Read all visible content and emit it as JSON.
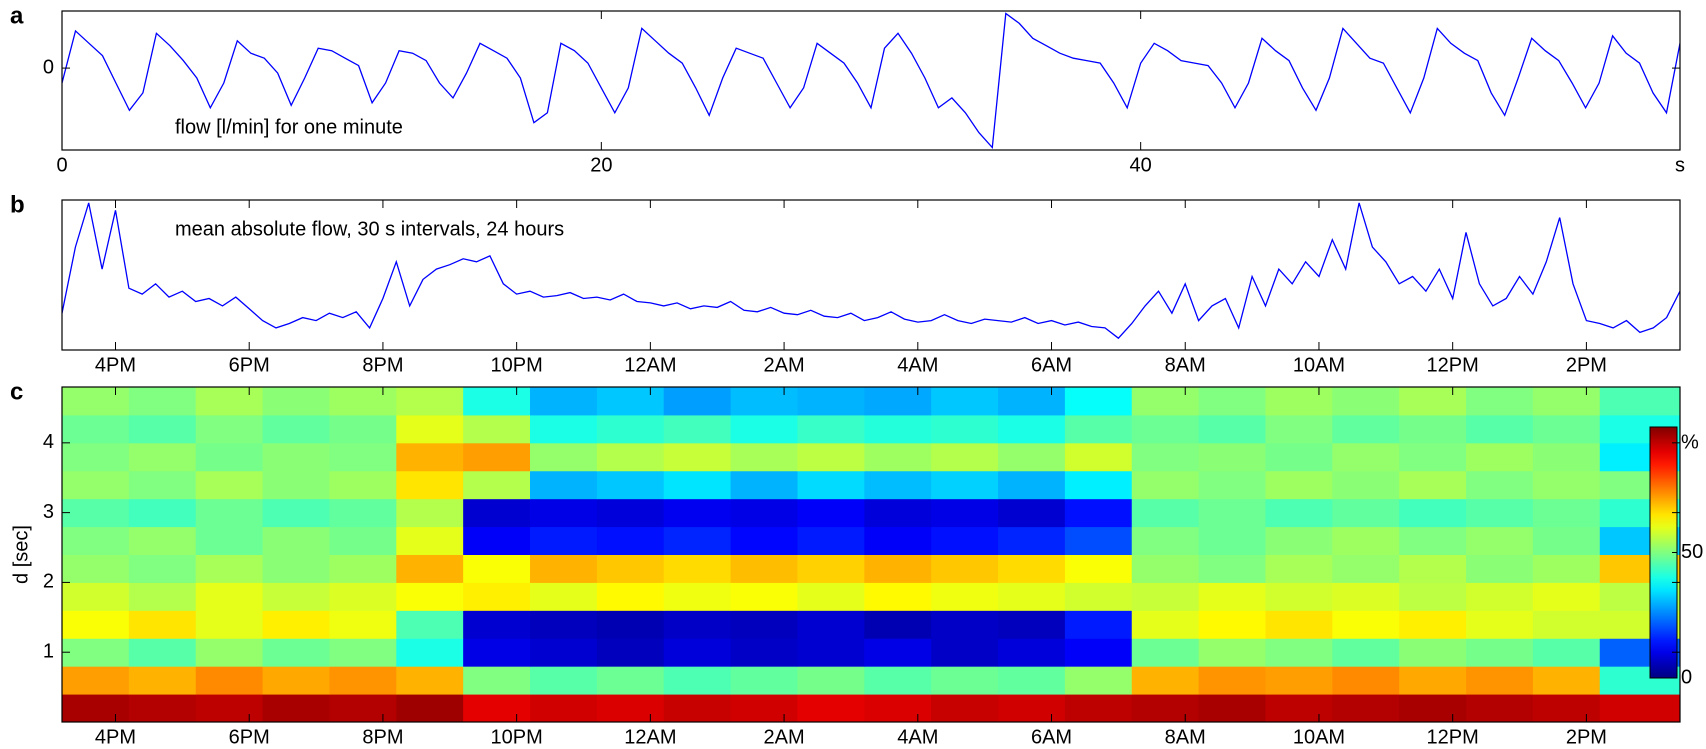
{
  "chart_data": [
    {
      "type": "line",
      "panel_label": "a",
      "annotation": "flow [l/min] for one minute",
      "color": "#0000ff",
      "x": [
        0,
        0.5,
        1,
        1.5,
        2,
        2.5,
        3,
        3.5,
        4,
        4.5,
        5,
        5.5,
        6,
        6.5,
        7,
        7.5,
        8,
        8.5,
        9,
        9.5,
        10,
        10.5,
        11,
        11.5,
        12,
        12.5,
        13,
        13.5,
        14,
        14.5,
        15,
        15.5,
        16,
        16.5,
        17,
        17.5,
        18,
        18.5,
        19,
        19.5,
        20,
        20.5,
        21,
        21.5,
        22,
        22.5,
        23,
        23.5,
        24,
        24.5,
        25,
        25.5,
        26,
        26.5,
        27,
        27.5,
        28,
        28.5,
        29,
        29.5,
        30,
        30.5,
        31,
        31.5,
        32,
        32.5,
        33,
        33.5,
        34,
        34.5,
        35,
        35.5,
        36,
        36.5,
        37,
        37.5,
        38,
        38.5,
        39,
        39.5,
        40,
        40.5,
        41,
        41.5,
        42,
        42.5,
        43,
        43.5,
        44,
        44.5,
        45,
        45.5,
        46,
        46.5,
        47,
        47.5,
        48,
        48.5,
        49,
        49.5,
        50,
        50.5,
        51,
        51.5,
        52,
        52.5,
        53,
        53.5,
        54,
        54.5,
        55,
        55.5,
        56,
        56.5,
        57,
        57.5,
        58,
        58.5,
        59,
        59.5,
        60
      ],
      "values": [
        -0.3,
        0.75,
        0.5,
        0.25,
        -0.3,
        -0.85,
        -0.5,
        0.7,
        0.45,
        0.15,
        -0.2,
        -0.8,
        -0.3,
        0.55,
        0.3,
        0.2,
        -0.1,
        -0.75,
        -0.2,
        0.4,
        0.35,
        0.2,
        0.05,
        -0.7,
        -0.3,
        0.35,
        0.3,
        0.15,
        -0.3,
        -0.6,
        -0.1,
        0.5,
        0.35,
        0.2,
        -0.2,
        -1.1,
        -0.9,
        0.5,
        0.35,
        0.1,
        -0.4,
        -0.9,
        -0.4,
        0.8,
        0.55,
        0.3,
        0.1,
        -0.4,
        -0.95,
        -0.2,
        0.4,
        0.3,
        0.2,
        -0.3,
        -0.8,
        -0.4,
        0.5,
        0.3,
        0.1,
        -0.3,
        -0.8,
        0.4,
        0.7,
        0.3,
        -0.2,
        -0.8,
        -0.6,
        -0.9,
        -1.3,
        -1.6,
        1.1,
        0.9,
        0.6,
        0.45,
        0.3,
        0.2,
        0.15,
        0.1,
        -0.3,
        -0.8,
        0.1,
        0.5,
        0.35,
        0.15,
        0.1,
        0.05,
        -0.3,
        -0.8,
        -0.3,
        0.6,
        0.35,
        0.15,
        -0.4,
        -0.85,
        -0.2,
        0.8,
        0.5,
        0.2,
        0.1,
        -0.4,
        -0.9,
        -0.2,
        0.8,
        0.5,
        0.3,
        0.15,
        -0.5,
        -0.95,
        -0.2,
        0.6,
        0.35,
        0.15,
        -0.3,
        -0.8,
        -0.3,
        0.65,
        0.3,
        0.1,
        -0.5,
        -0.9,
        0.5
      ],
      "xlim": [
        0,
        60
      ],
      "xticks": [
        0,
        20,
        40,
        {
          "value": 60,
          "label": "s"
        }
      ],
      "ylim": [
        -1.65,
        1.15
      ],
      "yticks": [
        0
      ]
    },
    {
      "type": "line",
      "panel_label": "b",
      "annotation": "mean absolute flow, 30 s intervals, 24 hours",
      "color": "#0000ff",
      "x": [
        15.2,
        15.4,
        15.6,
        15.8,
        16,
        16.2,
        16.4,
        16.6,
        16.8,
        17,
        17.2,
        17.4,
        17.6,
        17.8,
        18,
        18.2,
        18.4,
        18.6,
        18.8,
        19,
        19.2,
        19.4,
        19.6,
        19.8,
        20,
        20.2,
        20.4,
        20.6,
        20.8,
        21,
        21.2,
        21.4,
        21.6,
        21.8,
        22,
        22.2,
        22.4,
        22.6,
        22.8,
        23,
        23.2,
        23.4,
        23.6,
        23.8,
        24,
        24.2,
        24.4,
        24.6,
        24.8,
        25,
        25.2,
        25.4,
        25.6,
        25.8,
        26,
        26.2,
        26.4,
        26.6,
        26.8,
        27,
        27.2,
        27.4,
        27.6,
        27.8,
        28,
        28.2,
        28.4,
        28.6,
        28.8,
        29,
        29.2,
        29.4,
        29.6,
        29.8,
        30,
        30.2,
        30.4,
        30.6,
        30.8,
        31,
        31.2,
        31.4,
        31.6,
        31.8,
        32,
        32.2,
        32.4,
        32.6,
        32.8,
        33,
        33.2,
        33.4,
        33.6,
        33.8,
        34,
        34.2,
        34.4,
        34.6,
        34.8,
        35,
        35.2,
        35.4,
        35.6,
        35.8,
        36,
        36.2,
        36.4,
        36.6,
        36.8,
        37,
        37.2,
        37.4,
        37.6,
        37.8,
        38,
        38.2,
        38.4,
        38.6,
        38.8,
        39,
        39.2,
        39.4
      ],
      "values": [
        0.25,
        0.7,
        1.0,
        0.55,
        0.95,
        0.42,
        0.38,
        0.45,
        0.36,
        0.4,
        0.33,
        0.35,
        0.3,
        0.36,
        0.28,
        0.2,
        0.15,
        0.18,
        0.22,
        0.2,
        0.25,
        0.22,
        0.26,
        0.15,
        0.35,
        0.6,
        0.3,
        0.48,
        0.55,
        0.58,
        0.62,
        0.6,
        0.64,
        0.45,
        0.38,
        0.4,
        0.36,
        0.37,
        0.39,
        0.35,
        0.36,
        0.34,
        0.38,
        0.33,
        0.32,
        0.3,
        0.32,
        0.28,
        0.3,
        0.29,
        0.33,
        0.27,
        0.26,
        0.29,
        0.25,
        0.24,
        0.27,
        0.23,
        0.22,
        0.25,
        0.2,
        0.22,
        0.26,
        0.21,
        0.19,
        0.2,
        0.24,
        0.2,
        0.18,
        0.21,
        0.2,
        0.19,
        0.22,
        0.18,
        0.2,
        0.17,
        0.19,
        0.16,
        0.15,
        0.08,
        0.18,
        0.3,
        0.4,
        0.25,
        0.45,
        0.2,
        0.3,
        0.35,
        0.15,
        0.5,
        0.3,
        0.55,
        0.45,
        0.6,
        0.5,
        0.75,
        0.55,
        1.0,
        0.7,
        0.6,
        0.45,
        0.5,
        0.4,
        0.55,
        0.35,
        0.8,
        0.45,
        0.3,
        0.35,
        0.5,
        0.38,
        0.6,
        0.9,
        0.45,
        0.2,
        0.18,
        0.15,
        0.2,
        0.12,
        0.15,
        0.22,
        0.4
      ],
      "xlim": [
        15.2,
        39.4
      ],
      "xticks": [
        {
          "value": 16,
          "label": "4PM"
        },
        {
          "value": 18,
          "label": "6PM"
        },
        {
          "value": 20,
          "label": "8PM"
        },
        {
          "value": 22,
          "label": "10PM"
        },
        {
          "value": 24,
          "label": "12AM"
        },
        {
          "value": 26,
          "label": "2AM"
        },
        {
          "value": 28,
          "label": "4AM"
        },
        {
          "value": 30,
          "label": "6AM"
        },
        {
          "value": 32,
          "label": "8AM"
        },
        {
          "value": 34,
          "label": "10AM"
        },
        {
          "value": 36,
          "label": "12PM"
        },
        {
          "value": 38,
          "label": "2PM"
        }
      ],
      "ylim": [
        0,
        1.02
      ]
    },
    {
      "type": "heatmap",
      "panel_label": "c",
      "y_label": "d [sec]",
      "colormap": "jet",
      "x": [
        15.7,
        16.7,
        17.7,
        18.7,
        19.7,
        20.7,
        21.7,
        22.7,
        23.7,
        24.7,
        25.7,
        26.7,
        27.7,
        28.7,
        29.7,
        30.7,
        31.7,
        32.7,
        33.7,
        34.7,
        35.7,
        36.7,
        37.7,
        38.7
      ],
      "y": [
        0.2,
        0.6,
        1.0,
        1.4,
        1.8,
        2.2,
        2.6,
        3.0,
        3.4,
        3.8,
        4.2,
        4.6
      ],
      "z": [
        [
          96,
          95,
          94,
          96,
          95,
          97,
          90,
          92,
          91,
          93,
          92,
          90,
          91,
          93,
          92,
          94,
          95,
          96,
          94,
          95,
          96,
          95,
          94,
          92
        ],
        [
          72,
          70,
          74,
          71,
          73,
          70,
          50,
          46,
          48,
          45,
          47,
          49,
          46,
          48,
          47,
          52,
          70,
          73,
          72,
          74,
          71,
          73,
          70,
          42
        ],
        [
          50,
          46,
          52,
          48,
          50,
          40,
          10,
          8,
          6,
          9,
          7,
          8,
          10,
          7,
          9,
          12,
          48,
          52,
          50,
          47,
          51,
          49,
          46,
          22
        ],
        [
          62,
          65,
          60,
          64,
          61,
          45,
          8,
          6,
          5,
          7,
          6,
          8,
          5,
          7,
          6,
          15,
          60,
          63,
          65,
          62,
          64,
          60,
          58,
          58
        ],
        [
          58,
          55,
          60,
          57,
          59,
          62,
          64,
          60,
          63,
          61,
          62,
          60,
          63,
          61,
          60,
          58,
          57,
          60,
          58,
          59,
          56,
          58,
          60,
          56
        ],
        [
          52,
          50,
          54,
          51,
          53,
          70,
          62,
          70,
          68,
          66,
          69,
          67,
          70,
          68,
          66,
          62,
          52,
          50,
          54,
          52,
          55,
          51,
          53,
          68
        ],
        [
          50,
          52,
          48,
          51,
          49,
          60,
          12,
          15,
          14,
          16,
          13,
          15,
          12,
          14,
          16,
          20,
          50,
          48,
          51,
          53,
          50,
          52,
          49,
          32
        ],
        [
          46,
          44,
          48,
          45,
          47,
          55,
          8,
          10,
          9,
          11,
          10,
          12,
          9,
          10,
          8,
          14,
          46,
          48,
          45,
          47,
          44,
          46,
          48,
          42
        ],
        [
          52,
          50,
          54,
          51,
          53,
          65,
          55,
          30,
          32,
          35,
          30,
          34,
          31,
          33,
          30,
          36,
          52,
          50,
          53,
          51,
          54,
          50,
          52,
          50
        ],
        [
          50,
          52,
          49,
          51,
          50,
          70,
          72,
          52,
          55,
          57,
          54,
          56,
          53,
          55,
          52,
          58,
          50,
          51,
          49,
          52,
          50,
          53,
          51,
          36
        ],
        [
          48,
          46,
          50,
          47,
          49,
          60,
          55,
          40,
          42,
          44,
          40,
          43,
          41,
          42,
          40,
          46,
          48,
          46,
          50,
          47,
          49,
          46,
          48,
          40
        ],
        [
          52,
          50,
          54,
          51,
          53,
          55,
          40,
          30,
          32,
          28,
          31,
          30,
          29,
          32,
          30,
          38,
          52,
          50,
          53,
          51,
          54,
          50,
          52,
          45
        ]
      ],
      "xlim": [
        15.2,
        39.4
      ],
      "xticks": [
        {
          "value": 16,
          "label": "4PM"
        },
        {
          "value": 18,
          "label": "6PM"
        },
        {
          "value": 20,
          "label": "8PM"
        },
        {
          "value": 22,
          "label": "10PM"
        },
        {
          "value": 24,
          "label": "12AM"
        },
        {
          "value": 26,
          "label": "2AM"
        },
        {
          "value": 28,
          "label": "4AM"
        },
        {
          "value": 30,
          "label": "6AM"
        },
        {
          "value": 32,
          "label": "8AM"
        },
        {
          "value": 34,
          "label": "10AM"
        },
        {
          "value": 36,
          "label": "12PM"
        },
        {
          "value": 38,
          "label": "2PM"
        }
      ],
      "ylim": [
        0,
        4.8
      ],
      "yticks": [
        1,
        2,
        3,
        4
      ],
      "colorbar_lim": [
        0,
        100
      ],
      "colorbar_ticks": [
        0,
        50
      ],
      "colorbar_label": "%"
    }
  ]
}
